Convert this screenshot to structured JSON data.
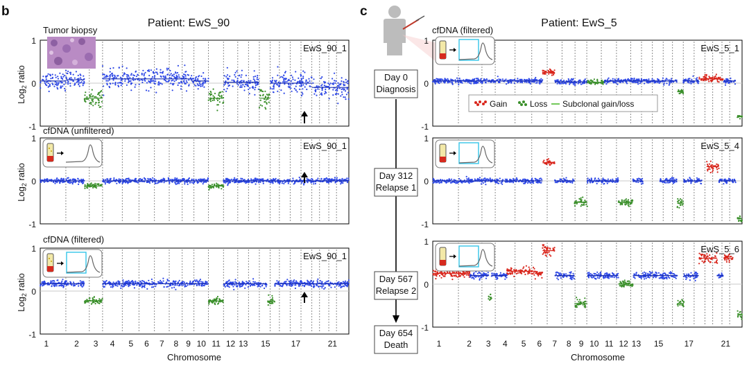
{
  "chart_data": {
    "type": "scatter",
    "chromosome_tick_labels": [
      "1",
      "2",
      "3",
      "4",
      "5",
      "6",
      "7",
      "8",
      "9",
      "10",
      "11",
      "12",
      "13",
      "15",
      "17",
      "21"
    ],
    "xlabel": "Chromosome",
    "ylabel_main": "Log",
    "ylabel_sub": "2",
    "ylabel_rest": " ratio",
    "y_ticks": [
      "1",
      "0",
      "-1"
    ],
    "ylim": [
      -1,
      1
    ],
    "colors": {
      "neutral": "#2e48e6",
      "loss": "#3a8f2a",
      "gain": "#d9261c",
      "subclonal": "#72c859",
      "arrow": "#000000"
    },
    "panels": [
      {
        "letter": "b",
        "title": "Patient: EwS_90",
        "tracks": [
          {
            "sample": "EwS_90_1",
            "note": "Tumor biopsy",
            "inset": "tumor-biopsy-image",
            "arrow_chromosome": "17",
            "segments": [
              {
                "x0": 0.0,
                "x1": 0.083,
                "y": 0.05,
                "sd": 0.1,
                "color": "neutral"
              },
              {
                "x0": 0.083,
                "x1": 0.143,
                "y": 0.08,
                "sd": 0.1,
                "color": "neutral"
              },
              {
                "x0": 0.143,
                "x1": 0.202,
                "y": -0.35,
                "sd": 0.09,
                "color": "loss"
              },
              {
                "x0": 0.202,
                "x1": 0.49,
                "y": 0.1,
                "sd": 0.11,
                "color": "neutral"
              },
              {
                "x0": 0.49,
                "x1": 0.545,
                "y": 0.05,
                "sd": 0.1,
                "color": "neutral"
              },
              {
                "x0": 0.545,
                "x1": 0.594,
                "y": -0.35,
                "sd": 0.1,
                "color": "loss"
              },
              {
                "x0": 0.594,
                "x1": 0.71,
                "y": 0.02,
                "sd": 0.11,
                "color": "neutral"
              },
              {
                "x0": 0.71,
                "x1": 0.745,
                "y": -0.35,
                "sd": 0.12,
                "color": "loss"
              },
              {
                "x0": 0.745,
                "x1": 0.88,
                "y": 0.0,
                "sd": 0.12,
                "color": "neutral"
              },
              {
                "x0": 0.88,
                "x1": 1.0,
                "y": -0.1,
                "sd": 0.13,
                "color": "neutral"
              }
            ]
          },
          {
            "sample": "EwS_90_1",
            "note": "cfDNA (unfiltered)",
            "inset": "cfdna-icon",
            "arrow_chromosome": "17",
            "segments": [
              {
                "x0": 0.0,
                "x1": 0.143,
                "y": 0.0,
                "sd": 0.03,
                "color": "neutral"
              },
              {
                "x0": 0.143,
                "x1": 0.202,
                "y": -0.12,
                "sd": 0.03,
                "color": "loss"
              },
              {
                "x0": 0.202,
                "x1": 0.545,
                "y": 0.0,
                "sd": 0.03,
                "color": "neutral"
              },
              {
                "x0": 0.545,
                "x1": 0.594,
                "y": -0.12,
                "sd": 0.03,
                "color": "loss"
              },
              {
                "x0": 0.594,
                "x1": 1.0,
                "y": 0.0,
                "sd": 0.03,
                "color": "neutral"
              }
            ]
          },
          {
            "sample": "EwS_90_1",
            "note": "cfDNA (filtered)",
            "inset": "cfdna-filtered-icon",
            "arrow_chromosome": "17",
            "segments": [
              {
                "x0": 0.0,
                "x1": 0.143,
                "y": 0.17,
                "sd": 0.04,
                "color": "neutral"
              },
              {
                "x0": 0.143,
                "x1": 0.202,
                "y": -0.23,
                "sd": 0.04,
                "color": "loss"
              },
              {
                "x0": 0.202,
                "x1": 0.545,
                "y": 0.17,
                "sd": 0.04,
                "color": "neutral"
              },
              {
                "x0": 0.545,
                "x1": 0.594,
                "y": -0.23,
                "sd": 0.04,
                "color": "loss"
              },
              {
                "x0": 0.594,
                "x1": 0.735,
                "y": 0.17,
                "sd": 0.04,
                "color": "neutral"
              },
              {
                "x0": 0.735,
                "x1": 0.76,
                "y": -0.23,
                "sd": 0.05,
                "color": "loss"
              },
              {
                "x0": 0.76,
                "x1": 1.0,
                "y": 0.17,
                "sd": 0.04,
                "color": "neutral"
              }
            ]
          }
        ]
      },
      {
        "letter": "c",
        "title": "Patient: EwS_5",
        "legend": {
          "gain": "Gain",
          "loss": "Loss",
          "subclonal": "Subclonal gain/loss"
        },
        "timeline": [
          {
            "day": "Day 0",
            "event": "Diagnosis"
          },
          {
            "day": "Day 312",
            "event": "Relapse 1"
          },
          {
            "day": "Day 567",
            "event": "Relapse 2"
          },
          {
            "day": "Day 654",
            "event": "Death"
          }
        ],
        "tracks": [
          {
            "sample": "EwS_5_1",
            "note": "cfDNA (filtered)",
            "inset": "cfdna-filtered-icon",
            "segments": [
              {
                "x0": 0.0,
                "x1": 0.355,
                "y": 0.05,
                "sd": 0.03,
                "color": "neutral"
              },
              {
                "x0": 0.355,
                "x1": 0.395,
                "y": 0.25,
                "sd": 0.03,
                "color": "gain"
              },
              {
                "x0": 0.395,
                "x1": 0.5,
                "y": 0.03,
                "sd": 0.03,
                "color": "neutral"
              },
              {
                "x0": 0.5,
                "x1": 0.555,
                "y": 0.02,
                "sd": 0.03,
                "color": "loss"
              },
              {
                "x0": 0.555,
                "x1": 0.79,
                "y": 0.05,
                "sd": 0.03,
                "color": "neutral"
              },
              {
                "x0": 0.79,
                "x1": 0.81,
                "y": -0.2,
                "sd": 0.03,
                "color": "loss"
              },
              {
                "x0": 0.81,
                "x1": 0.86,
                "y": 0.05,
                "sd": 0.03,
                "color": "neutral"
              },
              {
                "x0": 0.86,
                "x1": 0.94,
                "y": 0.1,
                "sd": 0.04,
                "color": "gain"
              },
              {
                "x0": 0.94,
                "x1": 0.98,
                "y": 0.05,
                "sd": 0.03,
                "color": "neutral"
              },
              {
                "x0": 0.985,
                "x1": 1.0,
                "y": -0.78,
                "sd": 0.03,
                "color": "loss"
              }
            ]
          },
          {
            "sample": "EwS_5_4",
            "note": "",
            "inset": "cfdna-filtered-icon",
            "segments": [
              {
                "x0": 0.0,
                "x1": 0.355,
                "y": 0.0,
                "sd": 0.03,
                "color": "neutral"
              },
              {
                "x0": 0.355,
                "x1": 0.395,
                "y": 0.42,
                "sd": 0.04,
                "color": "gain"
              },
              {
                "x0": 0.395,
                "x1": 0.458,
                "y": 0.0,
                "sd": 0.03,
                "color": "neutral"
              },
              {
                "x0": 0.458,
                "x1": 0.5,
                "y": -0.5,
                "sd": 0.04,
                "color": "loss"
              },
              {
                "x0": 0.5,
                "x1": 0.6,
                "y": 0.0,
                "sd": 0.03,
                "color": "neutral"
              },
              {
                "x0": 0.6,
                "x1": 0.647,
                "y": -0.5,
                "sd": 0.04,
                "color": "loss"
              },
              {
                "x0": 0.647,
                "x1": 0.68,
                "y": 0.0,
                "sd": 0.03,
                "color": "neutral"
              },
              {
                "x0": 0.735,
                "x1": 0.79,
                "y": 0.0,
                "sd": 0.03,
                "color": "neutral"
              },
              {
                "x0": 0.79,
                "x1": 0.812,
                "y": -0.52,
                "sd": 0.05,
                "color": "loss"
              },
              {
                "x0": 0.812,
                "x1": 0.87,
                "y": 0.0,
                "sd": 0.03,
                "color": "neutral"
              },
              {
                "x0": 0.885,
                "x1": 0.925,
                "y": 0.33,
                "sd": 0.05,
                "color": "gain"
              },
              {
                "x0": 0.925,
                "x1": 0.98,
                "y": 0.0,
                "sd": 0.03,
                "color": "neutral"
              },
              {
                "x0": 0.985,
                "x1": 1.0,
                "y": -0.88,
                "sd": 0.04,
                "color": "loss"
              }
            ]
          },
          {
            "sample": "EwS_5_6",
            "note": "",
            "inset": "cfdna-filtered-icon",
            "segments": [
              {
                "x0": 0.0,
                "x1": 0.12,
                "y": 0.25,
                "sd": 0.05,
                "color": "gain"
              },
              {
                "x0": 0.12,
                "x1": 0.18,
                "y": 0.2,
                "sd": 0.04,
                "color": "neutral"
              },
              {
                "x0": 0.18,
                "x1": 0.19,
                "y": -0.3,
                "sd": 0.04,
                "color": "loss"
              },
              {
                "x0": 0.19,
                "x1": 0.24,
                "y": 0.2,
                "sd": 0.04,
                "color": "neutral"
              },
              {
                "x0": 0.24,
                "x1": 0.33,
                "y": 0.3,
                "sd": 0.05,
                "color": "gain"
              },
              {
                "x0": 0.33,
                "x1": 0.355,
                "y": 0.25,
                "sd": 0.05,
                "color": "gain"
              },
              {
                "x0": 0.355,
                "x1": 0.395,
                "y": 0.78,
                "sd": 0.06,
                "color": "gain"
              },
              {
                "x0": 0.395,
                "x1": 0.458,
                "y": 0.2,
                "sd": 0.04,
                "color": "neutral"
              },
              {
                "x0": 0.458,
                "x1": 0.5,
                "y": -0.45,
                "sd": 0.05,
                "color": "loss"
              },
              {
                "x0": 0.5,
                "x1": 0.6,
                "y": 0.2,
                "sd": 0.04,
                "color": "neutral"
              },
              {
                "x0": 0.6,
                "x1": 0.647,
                "y": 0.0,
                "sd": 0.04,
                "color": "loss"
              },
              {
                "x0": 0.647,
                "x1": 0.79,
                "y": 0.2,
                "sd": 0.04,
                "color": "neutral"
              },
              {
                "x0": 0.79,
                "x1": 0.812,
                "y": -0.45,
                "sd": 0.05,
                "color": "loss"
              },
              {
                "x0": 0.812,
                "x1": 0.86,
                "y": 0.2,
                "sd": 0.04,
                "color": "neutral"
              },
              {
                "x0": 0.86,
                "x1": 0.92,
                "y": 0.6,
                "sd": 0.06,
                "color": "gain"
              },
              {
                "x0": 0.92,
                "x1": 0.94,
                "y": 0.2,
                "sd": 0.04,
                "color": "neutral"
              },
              {
                "x0": 0.94,
                "x1": 0.97,
                "y": 0.6,
                "sd": 0.05,
                "color": "gain"
              },
              {
                "x0": 0.985,
                "x1": 1.0,
                "y": -0.7,
                "sd": 0.04,
                "color": "loss"
              }
            ]
          }
        ]
      }
    ]
  }
}
